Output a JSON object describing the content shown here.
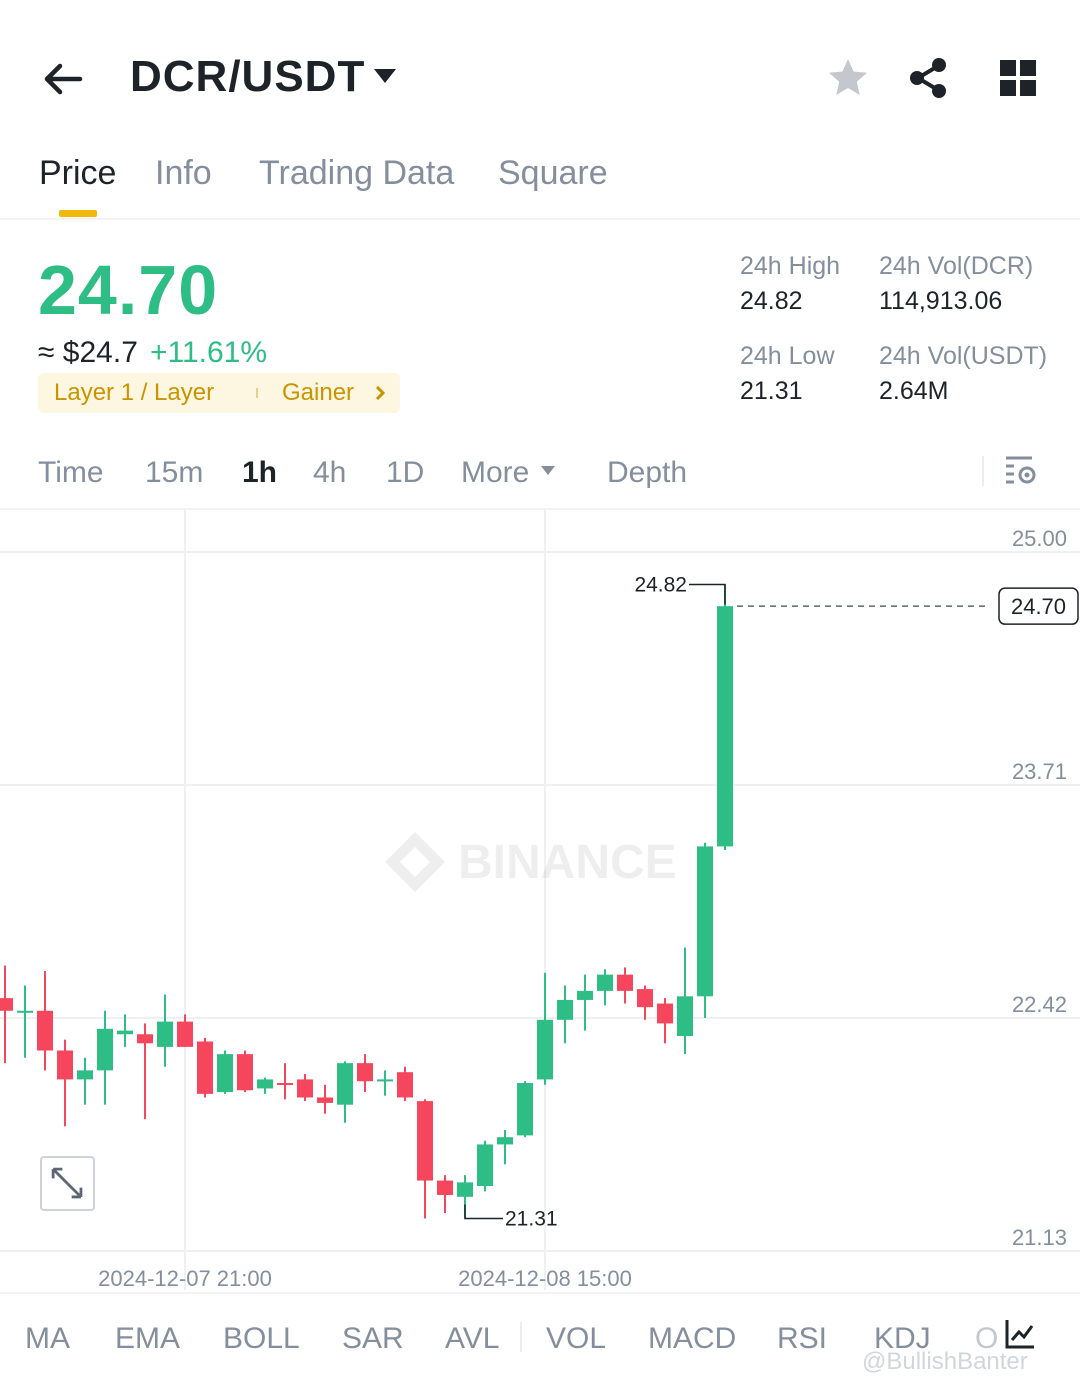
{
  "header": {
    "pair": "DCR/USDT",
    "icons": [
      "back-arrow-icon",
      "caret-down-icon",
      "star-icon",
      "share-icon",
      "grid-icon"
    ]
  },
  "tabs": [
    {
      "label": "Price",
      "active": true
    },
    {
      "label": "Info",
      "active": false
    },
    {
      "label": "Trading Data",
      "active": false
    },
    {
      "label": "Square",
      "active": false
    }
  ],
  "ticker": {
    "last_price": "24.70",
    "approx_usd": "≈ $24.7",
    "change_pct": "+11.61%",
    "tag_category": "Layer 1 / Layer",
    "tag_gainer": "Gainer",
    "high_label": "24h High",
    "high_value": "24.82",
    "low_label": "24h Low",
    "low_value": "21.31",
    "vol_base_label": "24h Vol(DCR)",
    "vol_base_value": "114,913.06",
    "vol_quote_label": "24h Vol(USDT)",
    "vol_quote_value": "2.64M"
  },
  "intervals": [
    {
      "label": "Time",
      "active": false
    },
    {
      "label": "15m",
      "active": false
    },
    {
      "label": "1h",
      "active": true
    },
    {
      "label": "4h",
      "active": false
    },
    {
      "label": "1D",
      "active": false
    },
    {
      "label": "More",
      "active": false
    },
    {
      "label": "Depth",
      "active": false
    }
  ],
  "colors": {
    "up": "#2ebd85",
    "down": "#f6465d",
    "accent": "#f0b90b",
    "text_primary": "#1e2329",
    "text_secondary": "#848e9c"
  },
  "chart_data": {
    "type": "candlestick",
    "ylim": [
      21.13,
      25.0
    ],
    "y_ticks": [
      "25.00",
      "23.71",
      "22.42",
      "21.13"
    ],
    "x_tick_labels": [
      "2024-12-07 21:00",
      "2024-12-08 15:00"
    ],
    "x_tick_index": [
      9,
      27
    ],
    "current_price_label": "24.70",
    "current_price": 24.7,
    "high_marker": {
      "label": "24.82",
      "value": 24.82,
      "index": 36
    },
    "low_marker": {
      "label": "21.31",
      "value": 21.31,
      "index": 23
    },
    "watermark": "BINANCE",
    "candles": [
      {
        "o": 22.53,
        "h": 22.71,
        "l": 22.17,
        "c": 22.46
      },
      {
        "o": 22.46,
        "h": 22.6,
        "l": 22.2,
        "c": 22.46
      },
      {
        "o": 22.46,
        "h": 22.68,
        "l": 22.13,
        "c": 22.24
      },
      {
        "o": 22.24,
        "h": 22.3,
        "l": 21.82,
        "c": 22.08
      },
      {
        "o": 22.08,
        "h": 22.2,
        "l": 21.94,
        "c": 22.13
      },
      {
        "o": 22.13,
        "h": 22.46,
        "l": 21.94,
        "c": 22.36
      },
      {
        "o": 22.33,
        "h": 22.44,
        "l": 22.26,
        "c": 22.35
      },
      {
        "o": 22.33,
        "h": 22.39,
        "l": 21.86,
        "c": 22.28
      },
      {
        "o": 22.26,
        "h": 22.55,
        "l": 22.15,
        "c": 22.4
      },
      {
        "o": 22.4,
        "h": 22.44,
        "l": 22.26,
        "c": 22.26
      },
      {
        "o": 22.29,
        "h": 22.31,
        "l": 21.98,
        "c": 22.0
      },
      {
        "o": 22.01,
        "h": 22.24,
        "l": 22.0,
        "c": 22.22
      },
      {
        "o": 22.22,
        "h": 22.24,
        "l": 22.01,
        "c": 22.02
      },
      {
        "o": 22.03,
        "h": 22.09,
        "l": 22.0,
        "c": 22.08
      },
      {
        "o": 22.06,
        "h": 22.17,
        "l": 21.97,
        "c": 22.05
      },
      {
        "o": 22.08,
        "h": 22.11,
        "l": 21.96,
        "c": 21.98
      },
      {
        "o": 21.98,
        "h": 22.05,
        "l": 21.89,
        "c": 21.95
      },
      {
        "o": 21.94,
        "h": 22.18,
        "l": 21.84,
        "c": 22.17
      },
      {
        "o": 22.17,
        "h": 22.22,
        "l": 22.01,
        "c": 22.07
      },
      {
        "o": 22.08,
        "h": 22.13,
        "l": 21.99,
        "c": 22.08
      },
      {
        "o": 22.12,
        "h": 22.15,
        "l": 21.96,
        "c": 21.98
      },
      {
        "o": 21.96,
        "h": 21.97,
        "l": 21.31,
        "c": 21.52
      },
      {
        "o": 21.52,
        "h": 21.55,
        "l": 21.34,
        "c": 21.44
      },
      {
        "o": 21.43,
        "h": 21.55,
        "l": 21.31,
        "c": 21.51
      },
      {
        "o": 21.49,
        "h": 21.74,
        "l": 21.46,
        "c": 21.72
      },
      {
        "o": 21.72,
        "h": 21.8,
        "l": 21.61,
        "c": 21.76
      },
      {
        "o": 21.77,
        "h": 22.07,
        "l": 21.76,
        "c": 22.06
      },
      {
        "o": 22.08,
        "h": 22.67,
        "l": 22.05,
        "c": 22.41
      },
      {
        "o": 22.41,
        "h": 22.6,
        "l": 22.28,
        "c": 22.52
      },
      {
        "o": 22.52,
        "h": 22.66,
        "l": 22.35,
        "c": 22.57
      },
      {
        "o": 22.57,
        "h": 22.69,
        "l": 22.49,
        "c": 22.66
      },
      {
        "o": 22.66,
        "h": 22.7,
        "l": 22.5,
        "c": 22.57
      },
      {
        "o": 22.58,
        "h": 22.6,
        "l": 22.41,
        "c": 22.48
      },
      {
        "o": 22.5,
        "h": 22.53,
        "l": 22.28,
        "c": 22.39
      },
      {
        "o": 22.32,
        "h": 22.81,
        "l": 22.22,
        "c": 22.54
      },
      {
        "o": 22.54,
        "h": 23.39,
        "l": 22.42,
        "c": 23.37
      },
      {
        "o": 23.37,
        "h": 24.82,
        "l": 23.35,
        "c": 24.7
      }
    ]
  },
  "indicators": [
    "MA",
    "EMA",
    "BOLL",
    "SAR",
    "AVL",
    "VOL",
    "MACD",
    "RSI",
    "KDJ",
    "O"
  ],
  "watermark_text": "@BullishBanter"
}
